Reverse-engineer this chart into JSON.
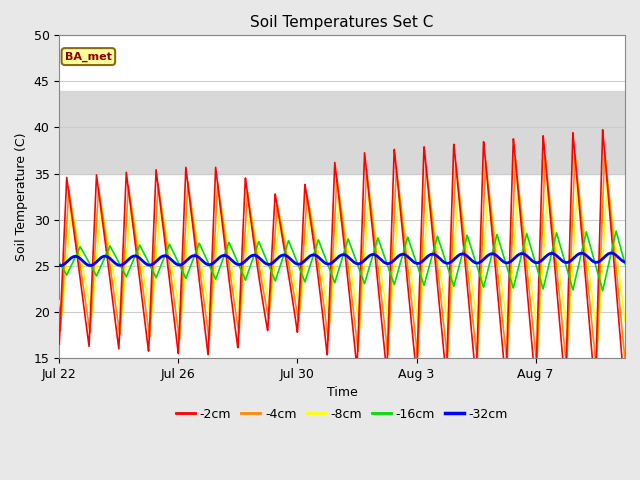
{
  "title": "Soil Temperatures Set C",
  "xlabel": "Time",
  "ylabel": "Soil Temperature (C)",
  "ylim": [
    15,
    50
  ],
  "yticks": [
    15,
    20,
    25,
    30,
    35,
    40,
    45,
    50
  ],
  "fig_bg_color": "#e8e8e8",
  "plot_bg": "#ffffff",
  "band_y1": 35,
  "band_y2": 44,
  "band_color": "#d8d8d8",
  "label_text": "BA_met",
  "label_box_color": "#ffff99",
  "label_border_color": "#8B6914",
  "colors": {
    "-2cm": "#ff0000",
    "-4cm": "#ff8800",
    "-8cm": "#ffff00",
    "-16cm": "#00dd00",
    "-32cm": "#0000ff"
  },
  "line_widths": {
    "-2cm": 1.2,
    "-4cm": 1.2,
    "-8cm": 1.2,
    "-16cm": 1.2,
    "-32cm": 2.0
  },
  "legend_labels": [
    "-2cm",
    "-4cm",
    "-8cm",
    "-16cm",
    "-32cm"
  ],
  "xtick_dates": [
    "Jul 22",
    "Jul 26",
    "Jul 30",
    "Aug 3",
    "Aug 7"
  ],
  "xtick_offsets": [
    0,
    4,
    8,
    12,
    16
  ]
}
